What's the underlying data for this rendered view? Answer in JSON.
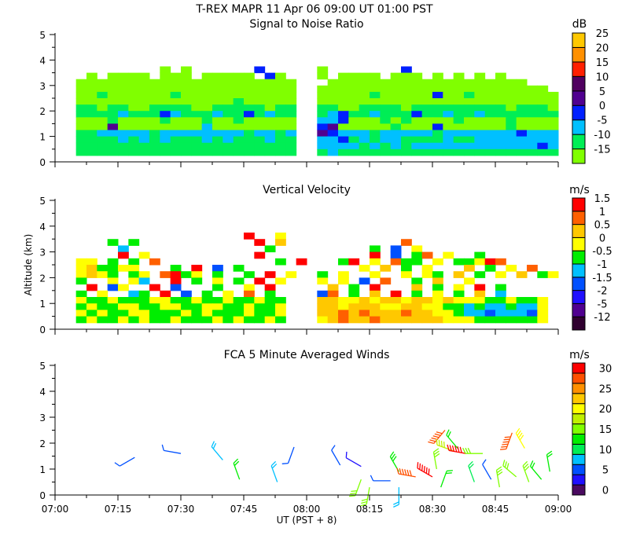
{
  "title": "T-REX   MAPR 11 Apr 06   09:00 UT   01:00   PST",
  "chart_data": [
    {
      "type": "heatmap",
      "title": "Signal to Noise Ratio",
      "units": "dB",
      "ylabel": "",
      "ylim": [
        0,
        5
      ],
      "yticks": [
        "0",
        "1",
        "2",
        "3",
        "4",
        "5"
      ],
      "time_bin_minutes": 2.5,
      "alt_bin_km": 0.25,
      "alt_rows_top_km": 3.75,
      "colorbar": {
        "labels": [
          "-15",
          "-10",
          "-5",
          "0",
          "5",
          "10",
          "15",
          "20",
          "25"
        ],
        "colors": [
          "#80ff00",
          "#00ee55",
          "#00c0ff",
          "#0020ff",
          "#500090",
          "#500060",
          "#ff2000",
          "#ff9000",
          "#ffc800"
        ]
      },
      "rows": [
        "..........0.0......3.....0.......3..............",
        "...0.0000.000.00000.30...0.0000.000.0.0.0.0.....",
        "..000000000000000000000...0000000000000000000...",
        "..000000000000000000000..0000000000000000000000.",
        "..001000000100000000000..00000100000300100000000",
        "..000000000000000100000..00000000000000000000000",
        "..110110011110011111011..11001111011111111101110",
        "..111121113211121131211..12311211131121121111111",
        "..000100001000100100000..22300010100001000010000",
        "..000400000000200000000..34000001000300000010000",
        "..112222212222222212212..43222122222122222223222",
        "..111121212111212111211..22312122111121122222222",
        "..111111111111111111111..22221212122222222222232",
        "..111111111111111111111..12111111111111111111111"
      ]
    },
    {
      "type": "heatmap",
      "title": "Vertical Velocity",
      "units": "m/s",
      "ylabel": "Altitude (km)",
      "ylim": [
        0,
        5
      ],
      "yticks": [
        "0",
        "1",
        "2",
        "3",
        "4",
        "5"
      ],
      "time_bin_minutes": 2.5,
      "alt_bin_km": 0.25,
      "alt_rows_top_km": 3.75,
      "colorbar": {
        "labels": [
          "-12",
          "-5",
          "-2",
          "-1.5",
          "-1",
          "-0.5",
          "0",
          "0.5",
          "1",
          "1.5"
        ],
        "colors": [
          "#300030",
          "#500090",
          "#2010ff",
          "#0050ff",
          "#00c0ff",
          "#00ee00",
          "#ffff00",
          "#ffc800",
          "#ff6000",
          "#ff0000"
        ]
      },
      "rows": [
        "..................9..6..........................",
        ".....5.5...........9.7...........8..............",
        "......4.............5.........5.3.6.............",
        "......9.6..........9..........9.3.58.6..5.......",
        "..66.5.5.8...........5.9...59.6.855.6.55698.....",
        "..675566...5.9.3.5...........6.7.5.6...7.5.6.8..",
        "..6765.56.8956.5..5.9.6..5.6..6..6.65.7.5.6.7.56",
        "..5..6.64..9.5.6.5.9.6...6.6.3.8..5.7..6........",
        "...9.36..9.3...5..6.9.....7.5.9...7.5.6.9.5.....",
        "..5.6..45.9.3.5.6.8.5....38.5.7.9.5.6.5.7.4.....",
        "..65565556655655655655...7766767767767666556556.",
        "..56556655665566556556...7767776677665545445446.",
        "..65655665556565556556...7787877787766544344436.",
        "..56556565565556565565...6787787777776665555556."
      ]
    },
    {
      "type": "scatter",
      "title": "FCA 5 Minute Averaged Winds",
      "units": "m/s",
      "ylim": [
        0,
        5
      ],
      "yticks": [
        "0",
        "1",
        "2",
        "3",
        "4",
        "5"
      ],
      "xlabel": "UT  (PST + 8)",
      "xticks": [
        "07:00",
        "07:15",
        "07:30",
        "07:45",
        "08:00",
        "08:15",
        "08:30",
        "08:45",
        "09:00"
      ],
      "colorbar": {
        "labels": [
          "0",
          "5",
          "10",
          "15",
          "20",
          "25",
          "30"
        ],
        "colors": [
          "#4a0a60",
          "#2010ff",
          "#0050ff",
          "#00c0ff",
          "#00ee55",
          "#00ee00",
          "#80ff00",
          "#c0f000",
          "#ffff00",
          "#ffc800",
          "#ff9000",
          "#ff5000",
          "#ff0000"
        ]
      },
      "barbs_minutes_after_0700": [
        {
          "t": 19,
          "z": 1.45,
          "dir": 240,
          "s": 5
        },
        {
          "t": 30,
          "z": 1.6,
          "dir": 280,
          "s": 5
        },
        {
          "t": 40,
          "z": 1.35,
          "dir": 320,
          "s": 8
        },
        {
          "t": 44,
          "z": 0.6,
          "dir": 340,
          "s": 12
        },
        {
          "t": 53,
          "z": 0.5,
          "dir": 340,
          "s": 8
        },
        {
          "t": 57,
          "z": 1.85,
          "dir": 200,
          "s": 5
        },
        {
          "t": 68,
          "z": 1.15,
          "dir": 330,
          "s": 5
        },
        {
          "t": 73,
          "z": 1.1,
          "dir": 300,
          "s": 3
        },
        {
          "t": 73,
          "z": 0.6,
          "dir": 200,
          "s": 15
        },
        {
          "t": 75,
          "z": 0.3,
          "dir": 190,
          "s": 14
        },
        {
          "t": 80,
          "z": 0.55,
          "dir": 270,
          "s": 5
        },
        {
          "t": 82,
          "z": 0.9,
          "dir": 330,
          "s": 13
        },
        {
          "t": 82,
          "z": 0.3,
          "dir": 180,
          "s": 8
        },
        {
          "t": 86,
          "z": 0.7,
          "dir": 280,
          "s": 28
        },
        {
          "t": 90,
          "z": 0.7,
          "dir": 300,
          "s": 30
        },
        {
          "t": 91,
          "z": 1.0,
          "dir": 350,
          "s": 15
        },
        {
          "t": 92,
          "z": 0.3,
          "dir": 20,
          "s": 12
        },
        {
          "t": 93,
          "z": 2.5,
          "dir": 220,
          "s": 28
        },
        {
          "t": 95,
          "z": 1.7,
          "dir": 290,
          "s": 18
        },
        {
          "t": 96,
          "z": 1.8,
          "dir": 320,
          "s": 12
        },
        {
          "t": 98,
          "z": 1.6,
          "dir": 280,
          "s": 30
        },
        {
          "t": 100,
          "z": 0.5,
          "dir": 340,
          "s": 10
        },
        {
          "t": 102,
          "z": 1.6,
          "dir": 270,
          "s": 14
        },
        {
          "t": 104,
          "z": 0.6,
          "dir": 330,
          "s": 5
        },
        {
          "t": 106,
          "z": 0.3,
          "dir": 350,
          "s": 14
        },
        {
          "t": 109,
          "z": 2.4,
          "dir": 200,
          "s": 28
        },
        {
          "t": 110,
          "z": 0.7,
          "dir": 310,
          "s": 15
        },
        {
          "t": 112,
          "z": 1.8,
          "dir": 330,
          "s": 20
        },
        {
          "t": 113,
          "z": 0.5,
          "dir": 340,
          "s": 14
        },
        {
          "t": 116,
          "z": 0.6,
          "dir": 320,
          "s": 12
        },
        {
          "t": 118,
          "z": 0.9,
          "dir": 350,
          "s": 12
        }
      ]
    }
  ]
}
